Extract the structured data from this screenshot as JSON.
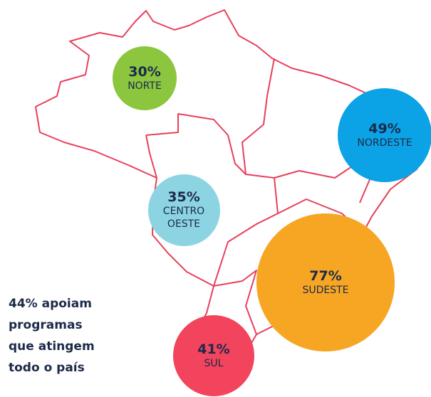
{
  "regions": [
    {
      "name": "NORTE",
      "value": 30,
      "value_label": "30%",
      "color": "#8cc63f"
    },
    {
      "name": "NORDESTE",
      "value": 49,
      "value_label": "49%",
      "color": "#0ba3e6"
    },
    {
      "name": "CENTRO OESTE",
      "value": 35,
      "value_label": "35%",
      "color": "#8dd4e3"
    },
    {
      "name": "SUDESTE",
      "value": 77,
      "value_label": "77%",
      "color": "#f6a623"
    },
    {
      "name": "SUL",
      "value": 41,
      "value_label": "41%",
      "color": "#f2445c"
    }
  ],
  "note": [
    "44% apoiam",
    "programas",
    "que atingem",
    "todo o país"
  ]
}
